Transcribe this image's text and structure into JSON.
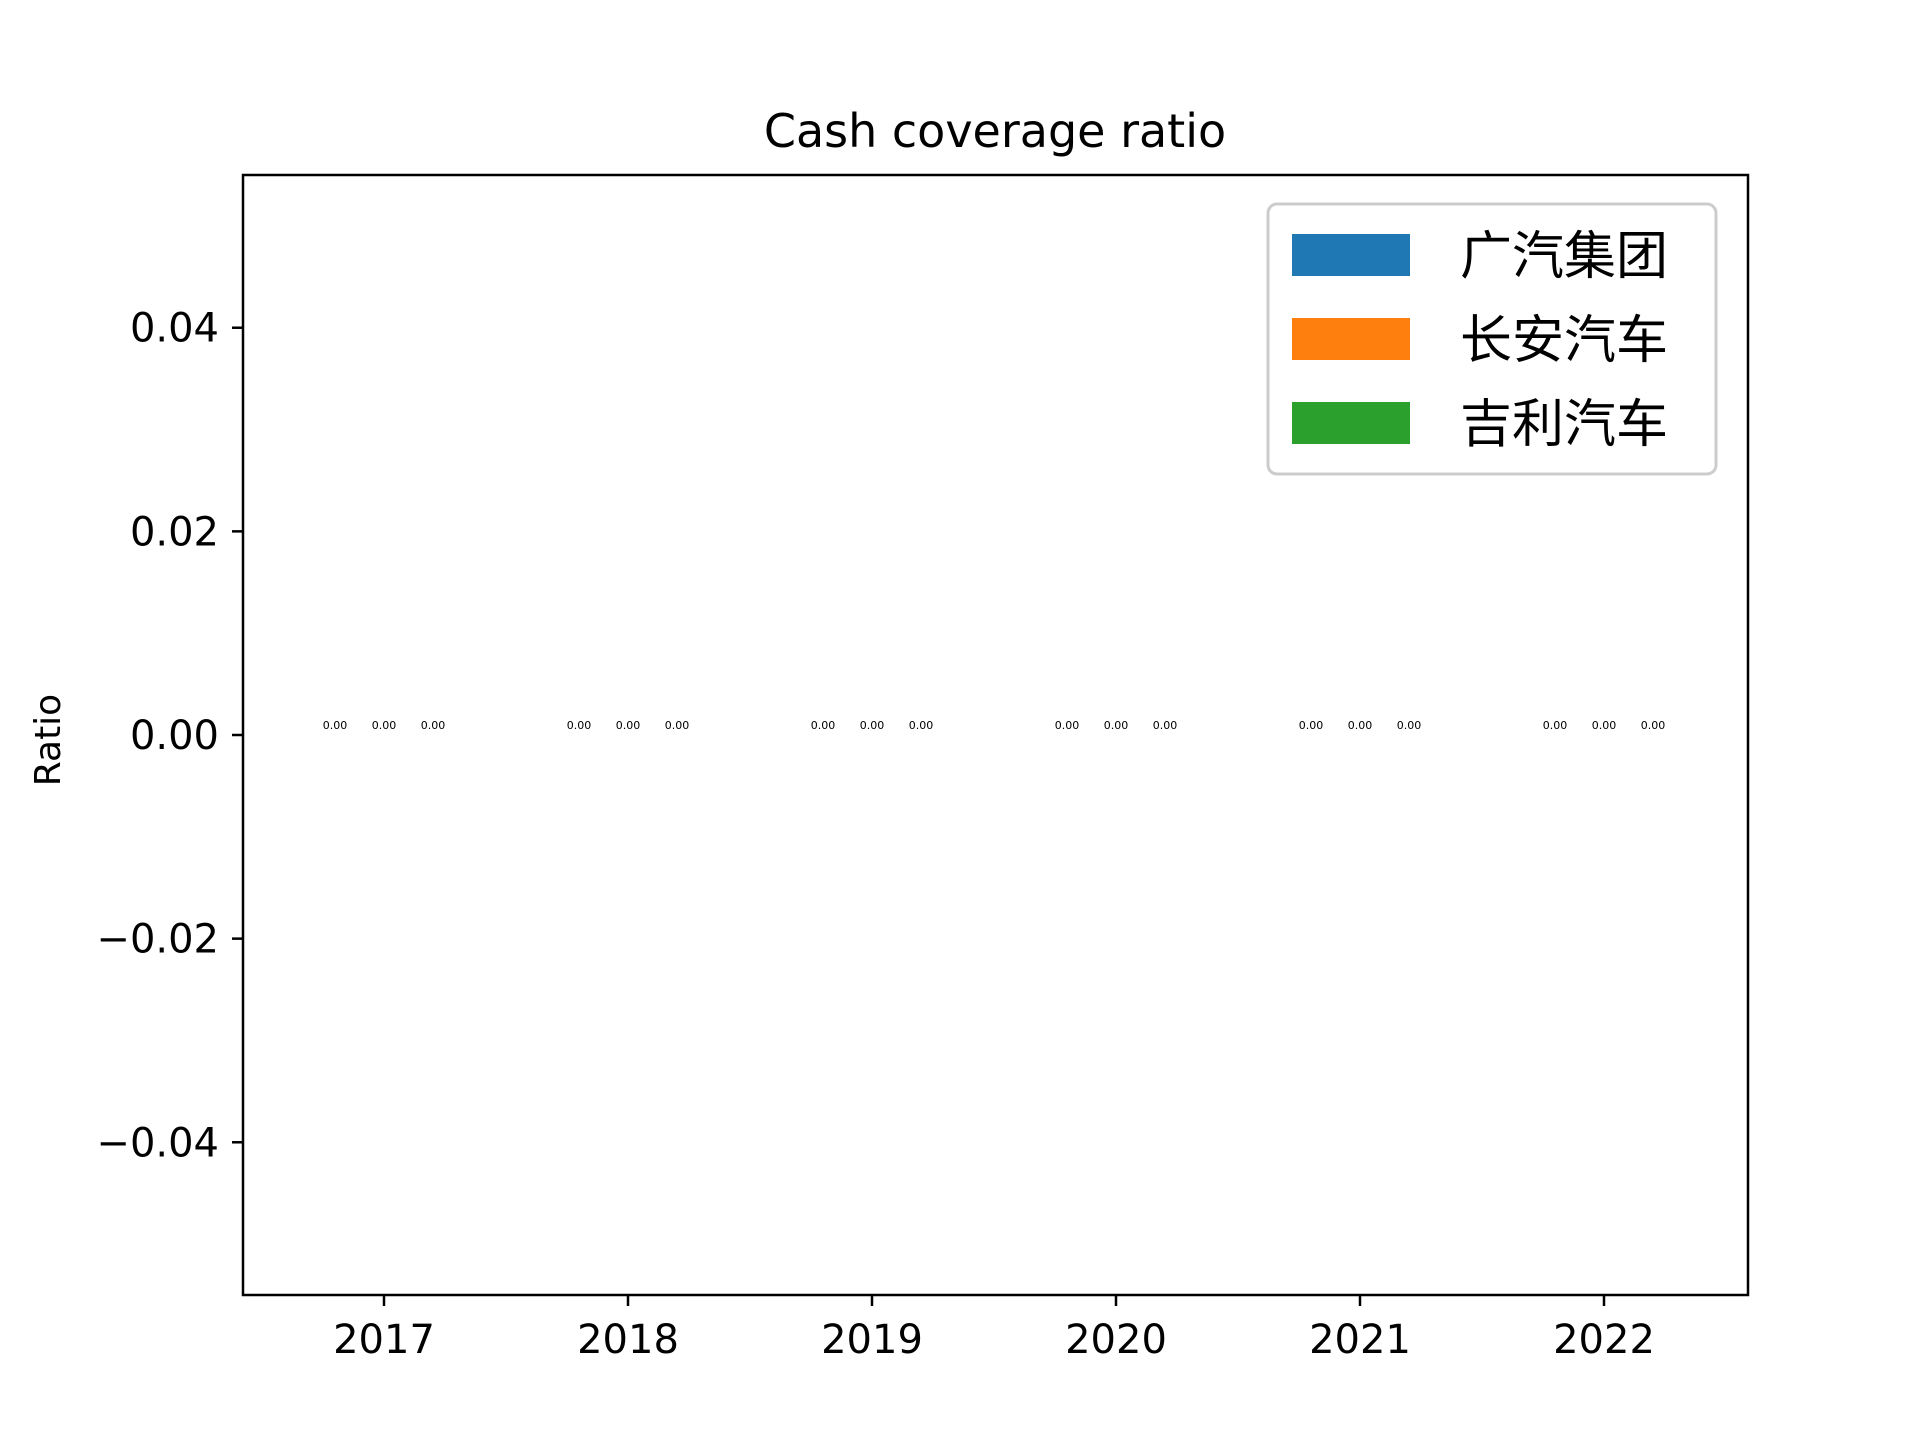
{
  "chart_data": {
    "type": "bar",
    "title": "Cash coverage ratio",
    "xlabel": "",
    "ylabel": "Ratio",
    "categories": [
      "2017",
      "2018",
      "2019",
      "2020",
      "2021",
      "2022"
    ],
    "series": [
      {
        "name": "广汽集团",
        "color": "#1f77b4",
        "values": [
          0,
          0,
          0,
          0,
          0,
          0
        ],
        "labels": [
          "0.00",
          "0.00",
          "0.00",
          "0.00",
          "0.00",
          "0.00"
        ]
      },
      {
        "name": "长安汽车",
        "color": "#ff7f0e",
        "values": [
          0,
          0,
          0,
          0,
          0,
          0
        ],
        "labels": [
          "0.00",
          "0.00",
          "0.00",
          "0.00",
          "0.00",
          "0.00"
        ]
      },
      {
        "name": "吉利汽车",
        "color": "#2ca02c",
        "values": [
          0,
          0,
          0,
          0,
          0,
          0
        ],
        "labels": [
          "0.00",
          "0.00",
          "0.00",
          "0.00",
          "0.00",
          "0.00"
        ]
      }
    ],
    "ylim": [
      -0.055,
      0.055
    ],
    "yticks": [
      -0.04,
      -0.02,
      0.0,
      0.02,
      0.04
    ],
    "ytick_labels": [
      "−0.04",
      "−0.02",
      "0.00",
      "0.02",
      "0.04"
    ],
    "grid": false,
    "legend_position": "top-right"
  }
}
